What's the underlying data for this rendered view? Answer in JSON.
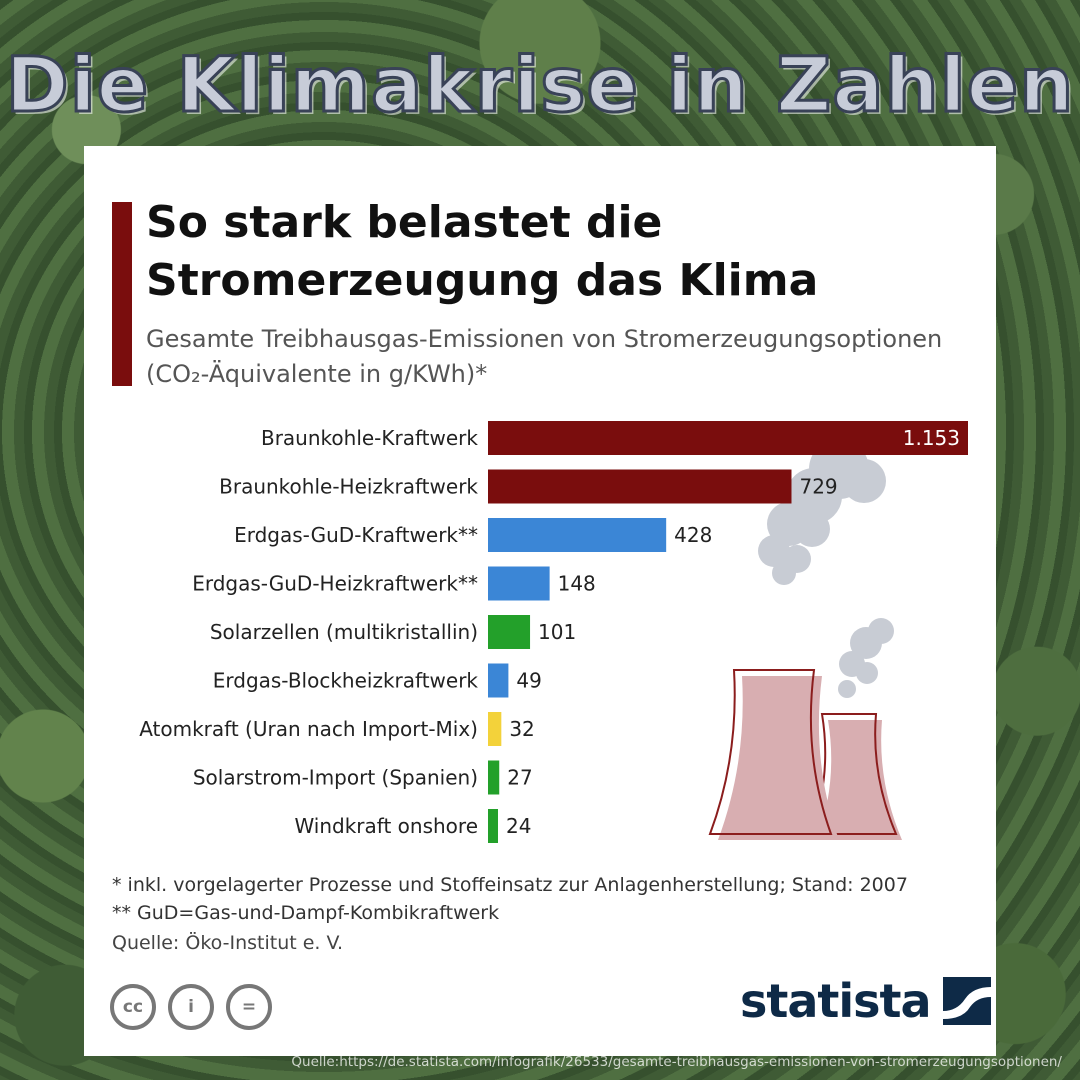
{
  "page": {
    "headline": "Die Klimakrise in Zahlen",
    "source_url": "Quelle:https://de.statista.com/infografik/26533/gesamte-treibhausgas-emissionen-von-stromerzeugungsoptionen/"
  },
  "card": {
    "title": "So stark belastet die Stromerzeugung das Klima",
    "subtitle_text": "Gesamte Treibhausgas-Emissionen von Stromerzeugungsoptionen (CO₂-Äquivalente in g/KWh)*",
    "footnote_1": "*   inkl. vorgelagerter Prozesse und Stoffeinsatz zur Anlagenherstellung; Stand: 2007",
    "footnote_2": "** GuD=Gas-und-Dampf-Kombikraftwerk",
    "source": "Quelle: Öko-Institut e. V.",
    "cc_icons": [
      "cc-icon",
      "attribution-icon",
      "no-derivatives-icon"
    ],
    "cc_glyphs": [
      "cc",
      "i",
      "="
    ],
    "brand": "statista",
    "illustration": "power-plant-icon"
  },
  "colors": {
    "accent": "#7a0d0d",
    "coal": "#7a0d0d",
    "gas": "#3b86d6",
    "solar_wind": "#23a02a",
    "nuclear": "#f3d23a"
  },
  "chart_data": {
    "type": "bar",
    "orientation": "horizontal",
    "categories": [
      "Braunkohle-Kraftwerk",
      "Braunkohle-Heizkraftwerk",
      "Erdgas-GuD-Kraftwerk**",
      "Erdgas-GuD-Heizkraftwerk**",
      "Solarzellen (multikristallin)",
      "Erdgas-Blockheizkraftwerk",
      "Atomkraft (Uran nach Import-Mix)",
      "Solarstrom-Import (Spanien)",
      "Windkraft onshore"
    ],
    "values": [
      1153,
      729,
      428,
      148,
      101,
      49,
      32,
      27,
      24
    ],
    "value_labels": [
      "1.153",
      "729",
      "428",
      "148",
      "101",
      "49",
      "32",
      "27",
      "24"
    ],
    "bar_colors": [
      "#7a0d0d",
      "#7a0d0d",
      "#3b86d6",
      "#3b86d6",
      "#23a02a",
      "#3b86d6",
      "#f3d23a",
      "#23a02a",
      "#23a02a"
    ],
    "xlim": [
      0,
      1153
    ],
    "grid": false,
    "legend": "none"
  }
}
